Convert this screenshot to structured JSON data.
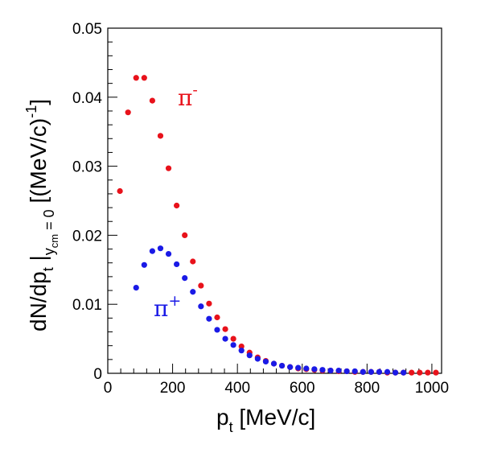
{
  "chart_data": {
    "type": "scatter",
    "x_label": {
      "main": "p",
      "sub": "t",
      "rest": " [MeV/c]"
    },
    "y_label": {
      "a": "dN/dp",
      "a_sub": "t",
      "bar": " |",
      "cond_main": "y",
      "cond_sub": "cm",
      "cond_eq": " = 0",
      "b": " [(MeV/c)",
      "b_sup": "-1",
      "c": "]"
    },
    "xlim": [
      0,
      1030
    ],
    "ylim": [
      0,
      0.05
    ],
    "x_ticks": [
      0,
      200,
      400,
      600,
      800,
      1000
    ],
    "x_tick_labels": [
      "0",
      "200",
      "400",
      "600",
      "800",
      "1000"
    ],
    "y_ticks": [
      0,
      0.01,
      0.02,
      0.03,
      0.04,
      0.05
    ],
    "y_tick_labels": [
      "0",
      "0.01",
      "0.02",
      "0.03",
      "0.04",
      "0.05"
    ],
    "grid": false,
    "series": [
      {
        "name": "π⁻",
        "label_base": "π",
        "label_sup": "-",
        "color": "#e8121b",
        "x": [
          37.5,
          62.5,
          87.5,
          112.5,
          137.5,
          162.5,
          187.5,
          212.5,
          237.5,
          262.5,
          287.5,
          312.5,
          337.5,
          362.5,
          387.5,
          412.5,
          437.5,
          462.5,
          487.5,
          512.5,
          537.5,
          562.5,
          587.5,
          612.5,
          637.5,
          662.5,
          687.5,
          712.5,
          737.5,
          762.5,
          787.5,
          812.5,
          837.5,
          862.5,
          887.5,
          912.5,
          937.5,
          962.5,
          987.5,
          1012.5
        ],
        "y": [
          0.0264,
          0.0378,
          0.0428,
          0.0428,
          0.0395,
          0.0344,
          0.0297,
          0.0243,
          0.02,
          0.0162,
          0.0127,
          0.0101,
          0.0081,
          0.0064,
          0.005,
          0.0039,
          0.003,
          0.0023,
          0.0018,
          0.0014,
          0.0011,
          0.0009,
          0.0007,
          0.0006,
          0.0005,
          0.0004,
          0.0004,
          0.0003,
          0.0003,
          0.0002,
          0.0002,
          0.0002,
          0.0002,
          0.0001,
          0.0001,
          0.0001,
          0.0001,
          0.0001,
          0.0001,
          0.0001
        ]
      },
      {
        "name": "π⁺",
        "label_base": "π",
        "label_sup": "+",
        "color": "#1a1ae6",
        "x": [
          87.5,
          112.5,
          137.5,
          162.5,
          187.5,
          212.5,
          237.5,
          262.5,
          287.5,
          312.5,
          337.5,
          362.5,
          387.5,
          412.5,
          437.5,
          462.5,
          487.5,
          512.5,
          537.5,
          562.5,
          587.5,
          612.5,
          637.5,
          662.5,
          687.5,
          712.5,
          737.5,
          762.5,
          787.5,
          812.5,
          837.5,
          862.5,
          887.5,
          912.5
        ],
        "y": [
          0.0124,
          0.0157,
          0.0177,
          0.0181,
          0.0173,
          0.0158,
          0.0138,
          0.0118,
          0.0097,
          0.0079,
          0.0063,
          0.005,
          0.0041,
          0.0033,
          0.0026,
          0.0021,
          0.0017,
          0.0014,
          0.0011,
          0.0009,
          0.0008,
          0.0007,
          0.0006,
          0.0005,
          0.0004,
          0.0004,
          0.0003,
          0.0003,
          0.0002,
          0.0002,
          0.0002,
          0.0002,
          0.0001,
          0.0001
        ]
      }
    ]
  }
}
